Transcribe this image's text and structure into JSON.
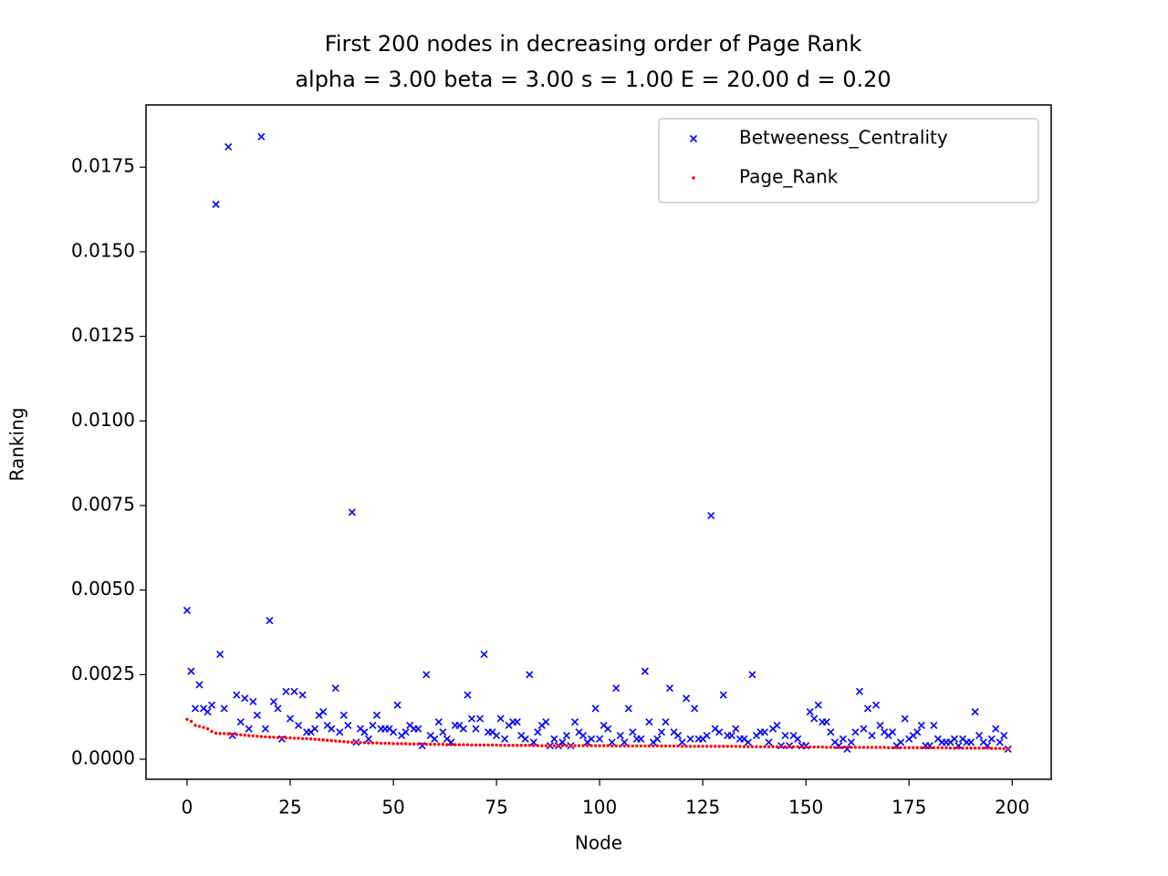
{
  "chart_data": {
    "type": "scatter",
    "title": "First 200 nodes in decreasing order of Page Rank",
    "subtitle": "alpha = 3.00 beta = 3.00 s = 1.00 E = 20.00 d = 0.20",
    "xlabel": "Node",
    "ylabel": "Ranking",
    "xlim": [
      -9.95,
      209.45
    ],
    "ylim": [
      -0.000593,
      0.01934
    ],
    "xticks": [
      0,
      25,
      50,
      75,
      100,
      125,
      150,
      175,
      200
    ],
    "yticks": [
      {
        "value": 0,
        "label": "0.0000"
      },
      {
        "value": 0.0025,
        "label": "0.0025"
      },
      {
        "value": 0.005,
        "label": "0.0050"
      },
      {
        "value": 0.0075,
        "label": "0.0075"
      },
      {
        "value": 0.01,
        "label": "0.0100"
      },
      {
        "value": 0.0125,
        "label": "0.0125"
      },
      {
        "value": 0.015,
        "label": "0.0150"
      },
      {
        "value": 0.0175,
        "label": "0.0175"
      }
    ],
    "legend": "upper right",
    "x": [
      0,
      1,
      2,
      3,
      4,
      5,
      6,
      7,
      8,
      9,
      10,
      11,
      12,
      13,
      14,
      15,
      16,
      17,
      18,
      19,
      20,
      21,
      22,
      23,
      24,
      25,
      26,
      27,
      28,
      29,
      30,
      31,
      32,
      33,
      34,
      35,
      36,
      37,
      38,
      39,
      40,
      41,
      42,
      43,
      44,
      45,
      46,
      47,
      48,
      49,
      50,
      51,
      52,
      53,
      54,
      55,
      56,
      57,
      58,
      59,
      60,
      61,
      62,
      63,
      64,
      65,
      66,
      67,
      68,
      69,
      70,
      71,
      72,
      73,
      74,
      75,
      76,
      77,
      78,
      79,
      80,
      81,
      82,
      83,
      84,
      85,
      86,
      87,
      88,
      89,
      90,
      91,
      92,
      93,
      94,
      95,
      96,
      97,
      98,
      99,
      100,
      101,
      102,
      103,
      104,
      105,
      106,
      107,
      108,
      109,
      110,
      111,
      112,
      113,
      114,
      115,
      116,
      117,
      118,
      119,
      120,
      121,
      122,
      123,
      124,
      125,
      126,
      127,
      128,
      129,
      130,
      131,
      132,
      133,
      134,
      135,
      136,
      137,
      138,
      139,
      140,
      141,
      142,
      143,
      144,
      145,
      146,
      147,
      148,
      149,
      150,
      151,
      152,
      153,
      154,
      155,
      156,
      157,
      158,
      159,
      160,
      161,
      162,
      163,
      164,
      165,
      166,
      167,
      168,
      169,
      170,
      171,
      172,
      173,
      174,
      175,
      176,
      177,
      178,
      179,
      180,
      181,
      182,
      183,
      184,
      185,
      186,
      187,
      188,
      189,
      190,
      191,
      192,
      193,
      194,
      195,
      196,
      197,
      198,
      199
    ],
    "series": [
      {
        "name": "Betweeness_Centrality",
        "color": "#0000ff",
        "marker": "x",
        "values": [
          0.0044,
          0.0026,
          0.0015,
          0.0022,
          0.0015,
          0.0014,
          0.0016,
          0.0164,
          0.0031,
          0.0015,
          0.0181,
          0.0007,
          0.0019,
          0.0011,
          0.0018,
          0.0009,
          0.0017,
          0.0013,
          0.0184,
          0.0009,
          0.0041,
          0.0017,
          0.0015,
          0.0006,
          0.002,
          0.0012,
          0.002,
          0.001,
          0.0019,
          0.0008,
          0.0008,
          0.0009,
          0.0013,
          0.0014,
          0.001,
          0.0009,
          0.0021,
          0.0008,
          0.0013,
          0.001,
          0.0073,
          0.0005,
          0.0009,
          0.0008,
          0.0006,
          0.001,
          0.0013,
          0.0009,
          0.0009,
          0.0009,
          0.0008,
          0.0016,
          0.0007,
          0.0008,
          0.001,
          0.0009,
          0.0009,
          0.0004,
          0.0025,
          0.0007,
          0.0006,
          0.0011,
          0.0008,
          0.0006,
          0.0005,
          0.001,
          0.001,
          0.0009,
          0.0019,
          0.0012,
          0.0009,
          0.0012,
          0.0031,
          0.0008,
          0.0008,
          0.0007,
          0.0012,
          0.0006,
          0.001,
          0.0011,
          0.0011,
          0.0007,
          0.0006,
          0.0025,
          0.0005,
          0.0008,
          0.001,
          0.0011,
          0.0004,
          0.0006,
          0.0004,
          0.0005,
          0.0007,
          0.0004,
          0.0011,
          0.0008,
          0.0007,
          0.0005,
          0.0006,
          0.0015,
          0.0006,
          0.001,
          0.0009,
          0.0005,
          0.0021,
          0.0007,
          0.0005,
          0.0015,
          0.0008,
          0.0006,
          0.0006,
          0.0026,
          0.0011,
          0.0005,
          0.0006,
          0.0008,
          0.0011,
          0.0021,
          0.0008,
          0.0007,
          0.0005,
          0.0018,
          0.0006,
          0.0015,
          0.0006,
          0.0006,
          0.0007,
          0.0072,
          0.0009,
          0.0008,
          0.0019,
          0.0007,
          0.0007,
          0.0009,
          0.0006,
          0.0006,
          0.0005,
          0.0025,
          0.0007,
          0.0008,
          0.0008,
          0.0005,
          0.0009,
          0.001,
          0.0004,
          0.0007,
          0.0004,
          0.0007,
          0.0006,
          0.0004,
          0.0004,
          0.0014,
          0.0012,
          0.0016,
          0.0011,
          0.0011,
          0.0008,
          0.0005,
          0.0004,
          0.0006,
          0.0003,
          0.0005,
          0.0008,
          0.002,
          0.0009,
          0.0015,
          0.0007,
          0.0016,
          0.001,
          0.0008,
          0.0007,
          0.0008,
          0.0004,
          0.0005,
          0.0012,
          0.0006,
          0.0007,
          0.0008,
          0.001,
          0.0004,
          0.0004,
          0.001,
          0.0006,
          0.0005,
          0.0005,
          0.0005,
          0.0006,
          0.0004,
          0.0006,
          0.0005,
          0.0005,
          0.0014,
          0.0007,
          0.0005,
          0.0004,
          0.0006,
          0.0009,
          0.0005,
          0.0007,
          0.0003
        ]
      },
      {
        "name": "Page_Rank",
        "color": "#ff0000",
        "marker": ".",
        "values": [
          0.00118,
          0.00112,
          0.001,
          0.00097,
          0.00094,
          0.0009,
          0.00082,
          0.00077,
          0.00076,
          0.00076,
          0.00075,
          0.00074,
          0.00073,
          0.00072,
          0.00071,
          0.0007,
          0.00069,
          0.00068,
          0.00067,
          0.00066,
          0.00065,
          0.00065,
          0.00064,
          0.00064,
          0.00063,
          0.00063,
          0.00062,
          0.00062,
          0.00061,
          0.00061,
          0.0006,
          0.00059,
          0.00058,
          0.00057,
          0.00056,
          0.00055,
          0.00054,
          0.00053,
          0.00052,
          0.00051,
          0.0005,
          0.0005,
          0.00049,
          0.00049,
          0.00048,
          0.00048,
          0.00048,
          0.00047,
          0.00047,
          0.00047,
          0.00046,
          0.00046,
          0.00046,
          0.00046,
          0.00045,
          0.00045,
          0.00045,
          0.00045,
          0.00044,
          0.00044,
          0.00044,
          0.00044,
          0.00044,
          0.00043,
          0.00043,
          0.00043,
          0.00043,
          0.00043,
          0.00043,
          0.00042,
          0.00042,
          0.00042,
          0.00042,
          0.00042,
          0.00042,
          0.00042,
          0.00041,
          0.00041,
          0.00041,
          0.00041,
          0.00041,
          0.00041,
          0.00041,
          0.00041,
          0.0004,
          0.0004,
          0.0004,
          0.0004,
          0.0004,
          0.0004,
          0.0004,
          0.0004,
          0.0004,
          0.0004,
          0.0004,
          0.0004,
          0.0004,
          0.0004,
          0.0004,
          0.0004,
          0.0004,
          0.0004,
          0.0004,
          0.00039,
          0.00039,
          0.00039,
          0.00039,
          0.00039,
          0.00039,
          0.00039,
          0.00039,
          0.00039,
          0.00039,
          0.00039,
          0.00039,
          0.00039,
          0.00039,
          0.00039,
          0.00039,
          0.00039,
          0.00038,
          0.00038,
          0.00038,
          0.00038,
          0.00038,
          0.00038,
          0.00038,
          0.00038,
          0.00038,
          0.00038,
          0.00038,
          0.00038,
          0.00038,
          0.00038,
          0.00038,
          0.00037,
          0.00037,
          0.00037,
          0.00037,
          0.00037,
          0.00037,
          0.00037,
          0.00037,
          0.00037,
          0.00037,
          0.00037,
          0.00037,
          0.00037,
          0.00037,
          0.00037,
          0.00036,
          0.00036,
          0.00036,
          0.00036,
          0.00036,
          0.00035,
          0.00035,
          0.00035,
          0.00035,
          0.00035,
          0.00035,
          0.00035,
          0.00035,
          0.00035,
          0.00035,
          0.00035,
          0.00035,
          0.00035,
          0.00035,
          0.00035,
          0.00034,
          0.00034,
          0.00034,
          0.00034,
          0.00034,
          0.00034,
          0.00034,
          0.00034,
          0.00034,
          0.00034,
          0.00034,
          0.00034,
          0.00034,
          0.00034,
          0.00034,
          0.00033,
          0.00033,
          0.00033,
          0.00033,
          0.00033,
          0.00033,
          0.00033,
          0.00033,
          0.00033,
          0.00033,
          0.00032,
          0.00032,
          0.00032,
          0.00031,
          0.00031
        ]
      }
    ]
  }
}
